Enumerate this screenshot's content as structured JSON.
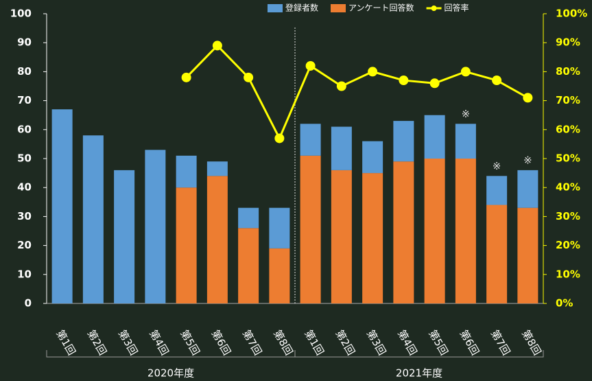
{
  "chart_data": {
    "type": "bar",
    "stacked": true,
    "categories": [
      "第1回",
      "第2回",
      "第3回",
      "第4回",
      "第5回",
      "第6回",
      "第7回",
      "第8回",
      "第1回",
      "第2回",
      "第3回",
      "第4回",
      "第5回",
      "第6回",
      "第7回",
      "第8回"
    ],
    "series": [
      {
        "name": "アンケート回答数",
        "color": "#ed7d31",
        "type": "bar",
        "values": [
          0,
          0,
          0,
          0,
          40,
          44,
          26,
          19,
          51,
          46,
          45,
          49,
          50,
          50,
          34,
          33
        ]
      },
      {
        "name": "登録者数",
        "color": "#5b9bd5",
        "type": "bar",
        "values": [
          67,
          58,
          46,
          53,
          11,
          5,
          7,
          14,
          11,
          15,
          11,
          14,
          15,
          12,
          10,
          13
        ]
      },
      {
        "name": "回答率",
        "color": "#ffff00",
        "type": "line",
        "axis": "y2",
        "values": [
          null,
          null,
          null,
          null,
          78,
          89,
          78,
          57,
          82,
          75,
          80,
          77,
          76,
          80,
          77,
          71
        ]
      }
    ],
    "legend_order": [
      1,
      0,
      2
    ],
    "ylim": [
      0,
      100
    ],
    "yticks": [
      0,
      10,
      20,
      30,
      40,
      50,
      60,
      70,
      80,
      90,
      100
    ],
    "y2lim": [
      0,
      100
    ],
    "y2ticks": [
      {
        "value": 0,
        "label": "0%"
      },
      {
        "value": 10,
        "label": "10%"
      },
      {
        "value": 20,
        "label": "20%"
      },
      {
        "value": 30,
        "label": "30%"
      },
      {
        "value": 40,
        "label": "40%"
      },
      {
        "value": 50,
        "label": "50%"
      },
      {
        "value": 60,
        "label": "60%"
      },
      {
        "value": 70,
        "label": "70%"
      },
      {
        "value": 80,
        "label": "80%"
      },
      {
        "value": 90,
        "label": "90%"
      },
      {
        "value": 100,
        "label": "100%"
      }
    ],
    "groups": [
      {
        "label": "2020年度",
        "start": 0,
        "end": 7
      },
      {
        "label": "2021年度",
        "start": 8,
        "end": 15
      }
    ],
    "annotations": [
      {
        "text": "※",
        "category_index": 13
      },
      {
        "text": "※",
        "category_index": 14
      },
      {
        "text": "※",
        "category_index": 15
      }
    ]
  }
}
